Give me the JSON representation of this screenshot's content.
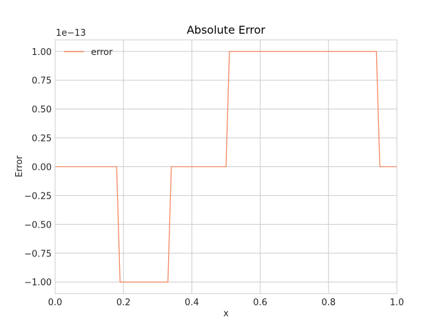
{
  "chart_data": {
    "type": "line",
    "title": "Absolute Error",
    "xlabel": "x",
    "ylabel": "Error",
    "y_offset_label": "1e−13",
    "xlim": [
      0.0,
      1.0
    ],
    "ylim": [
      -1.1,
      1.1
    ],
    "xticks": [
      0.0,
      0.2,
      0.4,
      0.6,
      0.8,
      1.0
    ],
    "xtick_labels": [
      "0.0",
      "0.2",
      "0.4",
      "0.6",
      "0.8",
      "1.0"
    ],
    "yticks": [
      -1.0,
      -0.75,
      -0.5,
      -0.25,
      0.0,
      0.25,
      0.5,
      0.75,
      1.0
    ],
    "ytick_labels": [
      "−1.00",
      "−0.75",
      "−0.50",
      "−0.25",
      "0.00",
      "0.25",
      "0.50",
      "0.75",
      "1.00"
    ],
    "grid": true,
    "legend_position": "top-left",
    "series": [
      {
        "name": "error",
        "color": "#f4845f",
        "x": [
          0.0,
          0.18,
          0.19,
          0.21,
          0.33,
          0.34,
          0.5,
          0.51,
          0.94,
          0.95,
          1.0
        ],
        "y": [
          0.0,
          0.0,
          -1.0,
          -1.0,
          -1.0,
          0.0,
          0.0,
          1.0,
          1.0,
          0.0,
          0.0
        ]
      }
    ]
  }
}
